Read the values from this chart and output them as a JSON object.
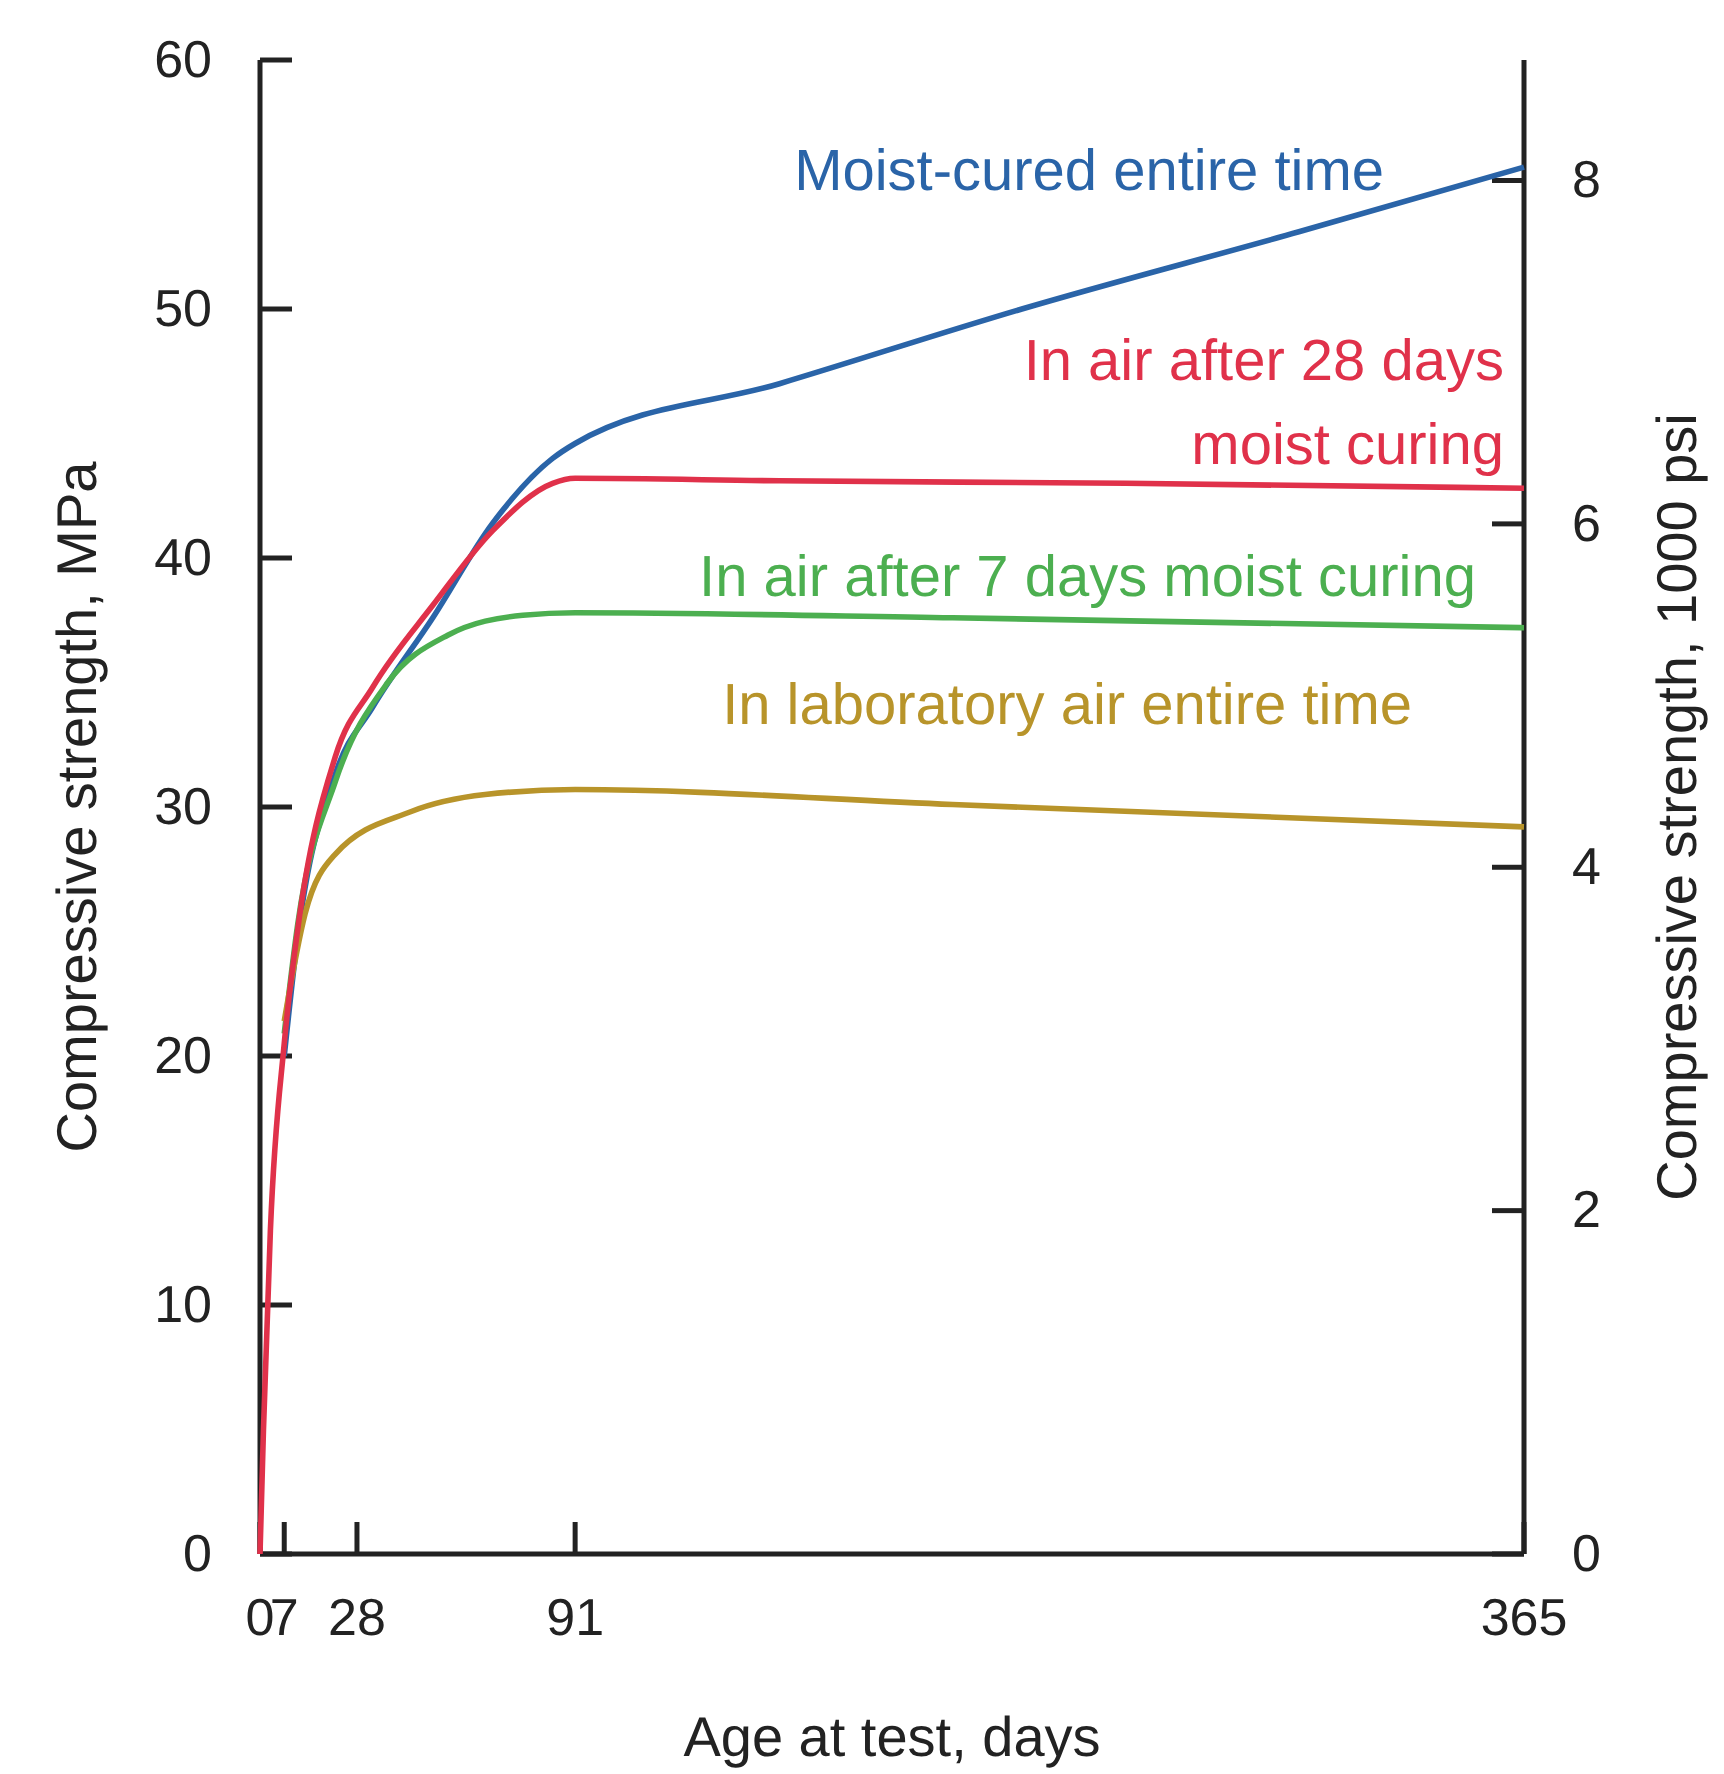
{
  "chart_data": {
    "type": "line",
    "xlabel": "Age at test, days",
    "ylabel": "Compressive strength, MPa",
    "y2label": "Compressive strength, 1000 psi",
    "xlim": [
      0,
      365
    ],
    "xticks": [
      0,
      7,
      28,
      91,
      365
    ],
    "ylim": [
      0,
      60
    ],
    "yticks": [
      0,
      10,
      20,
      30,
      40,
      50,
      60
    ],
    "y2lim": [
      0,
      8.702
    ],
    "y2ticks": [
      0,
      2,
      4,
      6,
      8
    ],
    "grid": false,
    "legend": false,
    "marker": "none",
    "line_style": "solid",
    "series": [
      {
        "name": "Moist-cured entire time",
        "color": "#2a64a8",
        "x": [
          7,
          10.9,
          21.7,
          32.5,
          49.9,
          67.2,
          84.5,
          91,
          150,
          220,
          300,
          365
        ],
        "values": [
          20.0,
          24.8,
          31.3,
          34.0,
          37.6,
          41.4,
          44.0,
          44.6,
          47.0,
          50.0,
          53.1,
          55.7
        ]
      },
      {
        "name": "In air after 7 days moist curing",
        "color": "#4caf50",
        "x": [
          7,
          10.9,
          21.7,
          36.9,
          54.2,
          75.9,
          91,
          200,
          365
        ],
        "values": [
          20.9,
          25.3,
          31.0,
          35.0,
          36.9,
          37.7,
          37.8,
          37.6,
          37.2
        ]
      },
      {
        "name": "In laboratory air entire time",
        "color": "#b8942a",
        "x": [
          7,
          13,
          21.7,
          43.3,
          65,
          91,
          200,
          365
        ],
        "values": [
          21.4,
          25.7,
          28.1,
          29.8,
          30.5,
          30.7,
          30.1,
          29.2
        ]
      },
      {
        "name": "In air after 28 days moist curing",
        "color": "#e0314a",
        "x": [
          0,
          1,
          3,
          7,
          10.9,
          21.7,
          32.5,
          49.9,
          67.2,
          84.5,
          91,
          150,
          250,
          365
        ],
        "values": [
          0,
          5,
          13,
          20.5,
          25.1,
          32.0,
          34.8,
          38.1,
          41.1,
          43.0,
          43.2,
          43.1,
          43.0,
          42.8
        ]
      }
    ]
  }
}
